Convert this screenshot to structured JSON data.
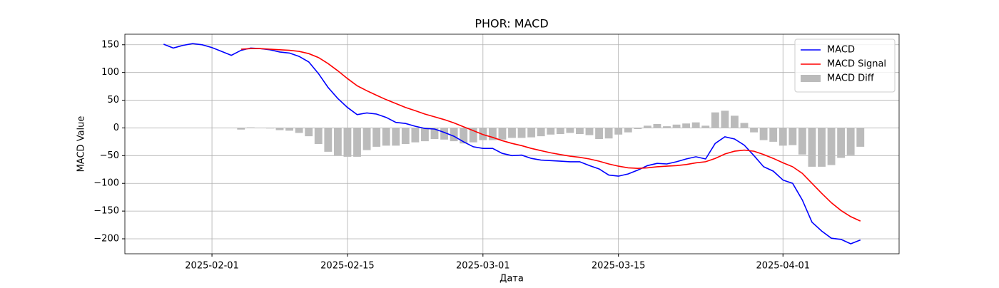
{
  "chart_data": {
    "type": "line",
    "title": "PHOR: MACD",
    "xlabel": "Дата",
    "ylabel": "MACD Value",
    "x": [
      "2025-01-27",
      "2025-01-28",
      "2025-01-29",
      "2025-01-30",
      "2025-01-31",
      "2025-02-01",
      "2025-02-02",
      "2025-02-03",
      "2025-02-04",
      "2025-02-05",
      "2025-02-06",
      "2025-02-07",
      "2025-02-08",
      "2025-02-09",
      "2025-02-10",
      "2025-02-11",
      "2025-02-12",
      "2025-02-13",
      "2025-02-14",
      "2025-02-15",
      "2025-02-16",
      "2025-02-17",
      "2025-02-18",
      "2025-02-19",
      "2025-02-20",
      "2025-02-21",
      "2025-02-22",
      "2025-02-23",
      "2025-02-24",
      "2025-02-25",
      "2025-02-26",
      "2025-02-27",
      "2025-02-28",
      "2025-03-01",
      "2025-03-02",
      "2025-03-03",
      "2025-03-04",
      "2025-03-05",
      "2025-03-06",
      "2025-03-07",
      "2025-03-08",
      "2025-03-09",
      "2025-03-10",
      "2025-03-11",
      "2025-03-12",
      "2025-03-13",
      "2025-03-14",
      "2025-03-15",
      "2025-03-16",
      "2025-03-17",
      "2025-03-18",
      "2025-03-19",
      "2025-03-20",
      "2025-03-21",
      "2025-03-22",
      "2025-03-23",
      "2025-03-24",
      "2025-03-25",
      "2025-03-26",
      "2025-03-27",
      "2025-03-28",
      "2025-03-29",
      "2025-03-30",
      "2025-03-31",
      "2025-04-01",
      "2025-04-02",
      "2025-04-03",
      "2025-04-04",
      "2025-04-05",
      "2025-04-06",
      "2025-04-07",
      "2025-04-08",
      "2025-04-09"
    ],
    "series": [
      {
        "name": "MACD",
        "type": "line",
        "color": "#0000ff",
        "values": [
          151,
          144,
          149,
          152,
          150,
          145,
          138,
          131,
          140,
          144,
          143,
          141,
          137,
          135,
          129,
          119,
          98,
          73,
          53,
          37,
          24,
          27,
          25,
          19,
          10,
          8,
          3,
          -1,
          -2,
          -8,
          -15,
          -25,
          -34,
          -37,
          -37,
          -46,
          -50,
          -49,
          -55,
          -58,
          -59,
          -60,
          -61,
          -61,
          -68,
          -74,
          -85,
          -87,
          -83,
          -76,
          -68,
          -64,
          -65,
          -61,
          -56,
          -52,
          -56,
          -28,
          -16,
          -20,
          -31,
          -50,
          -70,
          -78,
          -94,
          -100,
          -130,
          -170,
          -186,
          -199,
          -201,
          -209,
          -202
        ]
      },
      {
        "name": "MACD Signal",
        "type": "line",
        "color": "#ff0000",
        "values": [
          null,
          null,
          null,
          null,
          null,
          null,
          null,
          null,
          142,
          143,
          143,
          142,
          141,
          140,
          138,
          134,
          127,
          116,
          103,
          89,
          76,
          67,
          59,
          51,
          44,
          37,
          31,
          25,
          20,
          15,
          9,
          2,
          -5,
          -12,
          -17,
          -23,
          -28,
          -32,
          -37,
          -41,
          -45,
          -48,
          -51,
          -53,
          -56,
          -60,
          -65,
          -69,
          -72,
          -73,
          -72,
          -70,
          -69,
          -68,
          -66,
          -63,
          -61,
          -55,
          -47,
          -42,
          -40,
          -42,
          -48,
          -55,
          -63,
          -70,
          -82,
          -100,
          -118,
          -135,
          -149,
          -160,
          -168
        ]
      },
      {
        "name": "MACD Diff",
        "type": "bar",
        "color": "#bbbbbb",
        "values": [
          null,
          null,
          null,
          null,
          null,
          null,
          null,
          null,
          -3,
          1,
          0,
          -1,
          -4,
          -5,
          -9,
          -15,
          -29,
          -43,
          -50,
          -52,
          -52,
          -40,
          -34,
          -32,
          -32,
          -29,
          -26,
          -24,
          -20,
          -21,
          -24,
          -28,
          -26,
          -22,
          -22,
          -21,
          -18,
          -18,
          -17,
          -15,
          -12,
          -11,
          -9,
          -11,
          -13,
          -20,
          -19,
          -12,
          -8,
          -2,
          4,
          7,
          3,
          6,
          8,
          10,
          4,
          28,
          31,
          22,
          9,
          -8,
          -22,
          -25,
          -32,
          -31,
          -48,
          -70,
          -70,
          -67,
          -54,
          -49,
          -34
        ]
      }
    ],
    "xlim": [
      "2025-01-23",
      "2025-04-13"
    ],
    "xticks": [
      "2025-02-01",
      "2025-02-15",
      "2025-03-01",
      "2025-03-15",
      "2025-04-01"
    ],
    "ylim": [
      -227,
      169
    ],
    "yticks": [
      {
        "value": -200,
        "label": "−200"
      },
      {
        "value": -150,
        "label": "−150"
      },
      {
        "value": -100,
        "label": "−100"
      },
      {
        "value": -50,
        "label": "−50"
      },
      0,
      50,
      100,
      150
    ],
    "grid": true,
    "legend": "upper right"
  }
}
